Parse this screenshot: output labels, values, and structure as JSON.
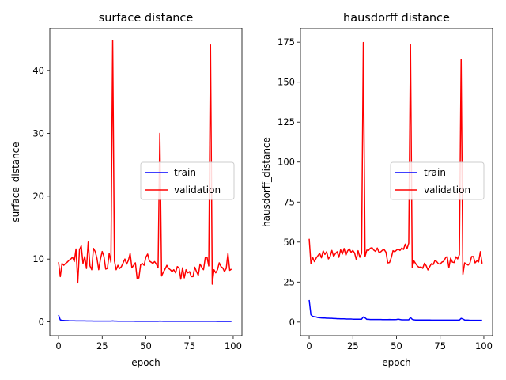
{
  "chart_data": [
    {
      "type": "line",
      "title": "surface distance",
      "xlabel": "epoch",
      "ylabel": "surface_distance",
      "xlim": [
        -5,
        105
      ],
      "ylim": [
        -2.2,
        46.7
      ],
      "xticks": [
        0,
        25,
        50,
        75,
        100
      ],
      "yticks": [
        0,
        10,
        20,
        30,
        40
      ],
      "legend": "center-right",
      "grid": false,
      "series": [
        {
          "name": "train",
          "color": "#0000ff",
          "x": [
            0,
            1,
            2,
            3,
            4,
            5,
            6,
            7,
            8,
            9,
            10,
            11,
            12,
            13,
            14,
            15,
            16,
            17,
            18,
            19,
            20,
            21,
            22,
            23,
            24,
            25,
            26,
            27,
            28,
            29,
            30,
            31,
            32,
            33,
            34,
            35,
            36,
            37,
            38,
            39,
            40,
            41,
            42,
            43,
            44,
            45,
            46,
            47,
            48,
            49,
            50,
            51,
            52,
            53,
            54,
            55,
            56,
            57,
            58,
            59,
            60,
            61,
            62,
            63,
            64,
            65,
            66,
            67,
            68,
            69,
            70,
            71,
            72,
            73,
            74,
            75,
            76,
            77,
            78,
            79,
            80,
            81,
            82,
            83,
            84,
            85,
            86,
            87,
            88,
            89,
            90,
            91,
            92,
            93,
            94,
            95,
            96,
            97,
            98,
            99
          ],
          "y": [
            1.1,
            0.3,
            0.25,
            0.22,
            0.2,
            0.2,
            0.18,
            0.17,
            0.16,
            0.16,
            0.15,
            0.15,
            0.15,
            0.14,
            0.14,
            0.14,
            0.13,
            0.13,
            0.13,
            0.13,
            0.12,
            0.12,
            0.12,
            0.12,
            0.12,
            0.11,
            0.11,
            0.11,
            0.11,
            0.11,
            0.11,
            0.15,
            0.12,
            0.11,
            0.1,
            0.1,
            0.1,
            0.1,
            0.1,
            0.1,
            0.1,
            0.1,
            0.1,
            0.1,
            0.09,
            0.09,
            0.09,
            0.09,
            0.09,
            0.09,
            0.09,
            0.09,
            0.09,
            0.09,
            0.09,
            0.09,
            0.09,
            0.09,
            0.12,
            0.1,
            0.09,
            0.09,
            0.08,
            0.08,
            0.08,
            0.08,
            0.08,
            0.08,
            0.08,
            0.08,
            0.08,
            0.08,
            0.08,
            0.08,
            0.08,
            0.08,
            0.08,
            0.08,
            0.08,
            0.08,
            0.08,
            0.08,
            0.08,
            0.08,
            0.08,
            0.08,
            0.08,
            0.1,
            0.09,
            0.08,
            0.08,
            0.07,
            0.07,
            0.07,
            0.07,
            0.07,
            0.07,
            0.07,
            0.07,
            0.07
          ]
        },
        {
          "name": "validation",
          "color": "#ff0000",
          "x": [
            0,
            1,
            2,
            3,
            4,
            5,
            6,
            7,
            8,
            9,
            10,
            11,
            12,
            13,
            14,
            15,
            16,
            17,
            18,
            19,
            20,
            21,
            22,
            23,
            24,
            25,
            26,
            27,
            28,
            29,
            30,
            31,
            32,
            33,
            34,
            35,
            36,
            37,
            38,
            39,
            40,
            41,
            42,
            43,
            44,
            45,
            46,
            47,
            48,
            49,
            50,
            51,
            52,
            53,
            54,
            55,
            56,
            57,
            58,
            59,
            60,
            61,
            62,
            63,
            64,
            65,
            66,
            67,
            68,
            69,
            70,
            71,
            72,
            73,
            74,
            75,
            76,
            77,
            78,
            79,
            80,
            81,
            82,
            83,
            84,
            85,
            86,
            87,
            88,
            89,
            90,
            91,
            92,
            93,
            94,
            95,
            96,
            97,
            98,
            99
          ],
          "y": [
            9.5,
            7.2,
            9.3,
            9.0,
            9.3,
            9.5,
            9.8,
            10.0,
            10.3,
            9.6,
            11.6,
            6.2,
            11.5,
            12.1,
            9.3,
            10.4,
            8.5,
            12.7,
            8.9,
            8.3,
            11.7,
            11.2,
            10.1,
            8.3,
            10.0,
            11.2,
            10.4,
            8.4,
            8.5,
            10.9,
            9.5,
            44.8,
            9.7,
            8.3,
            9.0,
            8.5,
            8.8,
            9.4,
            10.0,
            9.2,
            9.8,
            10.9,
            8.6,
            9.0,
            9.4,
            6.9,
            7.0,
            9.1,
            9.3,
            9.0,
            10.3,
            10.8,
            9.7,
            9.5,
            9.3,
            9.6,
            9.2,
            8.6,
            30.0,
            7.3,
            7.9,
            8.4,
            9.0,
            8.5,
            8.3,
            8.0,
            8.3,
            7.8,
            8.8,
            8.6,
            6.8,
            8.6,
            7.0,
            8.3,
            7.8,
            8.0,
            7.2,
            7.2,
            8.7,
            8.0,
            7.4,
            9.2,
            8.7,
            8.3,
            10.2,
            10.3,
            8.9,
            44.1,
            6.0,
            8.3,
            7.8,
            8.3,
            9.4,
            8.8,
            8.6,
            8.0,
            8.5,
            10.9,
            8.2,
            8.4
          ]
        }
      ],
      "legend_entries": [
        "train",
        "validation"
      ]
    },
    {
      "type": "line",
      "title": "hausdorff distance",
      "xlabel": "epoch",
      "ylabel": "hausdorff_distance",
      "xlim": [
        -5,
        105
      ],
      "ylim": [
        -8.5,
        183.5
      ],
      "xticks": [
        0,
        25,
        50,
        75,
        100
      ],
      "yticks": [
        0,
        25,
        50,
        75,
        100,
        125,
        150,
        175
      ],
      "legend": "center-right",
      "grid": false,
      "series": [
        {
          "name": "train",
          "color": "#0000ff",
          "x": [
            0,
            1,
            2,
            3,
            4,
            5,
            6,
            7,
            8,
            9,
            10,
            11,
            12,
            13,
            14,
            15,
            16,
            17,
            18,
            19,
            20,
            21,
            22,
            23,
            24,
            25,
            26,
            27,
            28,
            29,
            30,
            31,
            32,
            33,
            34,
            35,
            36,
            37,
            38,
            39,
            40,
            41,
            42,
            43,
            44,
            45,
            46,
            47,
            48,
            49,
            50,
            51,
            52,
            53,
            54,
            55,
            56,
            57,
            58,
            59,
            60,
            61,
            62,
            63,
            64,
            65,
            66,
            67,
            68,
            69,
            70,
            71,
            72,
            73,
            74,
            75,
            76,
            77,
            78,
            79,
            80,
            81,
            82,
            83,
            84,
            85,
            86,
            87,
            88,
            89,
            90,
            91,
            92,
            93,
            94,
            95,
            96,
            97,
            98,
            99
          ],
          "y": [
            13.8,
            4.5,
            3.6,
            3.3,
            3.2,
            2.8,
            2.7,
            2.6,
            2.5,
            2.5,
            2.4,
            2.4,
            2.3,
            2.3,
            2.2,
            2.2,
            2.1,
            2.1,
            2.0,
            2.0,
            2.0,
            1.9,
            1.9,
            1.9,
            1.9,
            1.8,
            1.8,
            1.8,
            1.8,
            1.8,
            1.8,
            3.2,
            2.6,
            1.7,
            1.7,
            1.6,
            1.6,
            1.6,
            1.6,
            1.6,
            1.6,
            1.6,
            1.5,
            1.5,
            1.5,
            1.5,
            1.6,
            1.5,
            1.5,
            1.5,
            1.6,
            1.8,
            1.6,
            1.4,
            1.4,
            1.4,
            1.4,
            1.4,
            2.8,
            1.7,
            1.4,
            1.3,
            1.3,
            1.3,
            1.3,
            1.3,
            1.3,
            1.3,
            1.3,
            1.3,
            1.2,
            1.2,
            1.2,
            1.2,
            1.2,
            1.2,
            1.2,
            1.2,
            1.2,
            1.2,
            1.2,
            1.2,
            1.2,
            1.2,
            1.2,
            1.2,
            1.2,
            2.3,
            1.9,
            1.3,
            1.2,
            1.2,
            1.1,
            1.1,
            1.1,
            1.1,
            1.1,
            1.1,
            1.1,
            1.1
          ]
        },
        {
          "name": "validation",
          "color": "#ff0000",
          "x": [
            0,
            1,
            2,
            3,
            4,
            5,
            6,
            7,
            8,
            9,
            10,
            11,
            12,
            13,
            14,
            15,
            16,
            17,
            18,
            19,
            20,
            21,
            22,
            23,
            24,
            25,
            26,
            27,
            28,
            29,
            30,
            31,
            32,
            33,
            34,
            35,
            36,
            37,
            38,
            39,
            40,
            41,
            42,
            43,
            44,
            45,
            46,
            47,
            48,
            49,
            50,
            51,
            52,
            53,
            54,
            55,
            56,
            57,
            58,
            59,
            60,
            61,
            62,
            63,
            64,
            65,
            66,
            67,
            68,
            69,
            70,
            71,
            72,
            73,
            74,
            75,
            76,
            77,
            78,
            79,
            80,
            81,
            82,
            83,
            84,
            85,
            86,
            87,
            88,
            89,
            90,
            91,
            92,
            93,
            94,
            95,
            96,
            97,
            98,
            99
          ],
          "y": [
            52.0,
            36.5,
            40.5,
            37.8,
            40.0,
            41.5,
            43.0,
            40.2,
            44.5,
            42.3,
            44.0,
            39.5,
            41.0,
            44.8,
            41.0,
            42.8,
            44.0,
            40.5,
            45.2,
            42.5,
            46.0,
            41.8,
            44.5,
            45.8,
            43.6,
            44.8,
            43.2,
            39.0,
            44.6,
            40.5,
            43.0,
            174.8,
            41.0,
            45.0,
            44.8,
            46.2,
            46.5,
            45.0,
            44.2,
            46.3,
            43.5,
            44.0,
            45.0,
            45.2,
            43.6,
            37.0,
            37.2,
            40.3,
            44.6,
            44.0,
            45.0,
            45.6,
            44.8,
            46.3,
            45.4,
            48.7,
            45.8,
            49.3,
            173.5,
            34.0,
            38.2,
            36.5,
            35.0,
            34.2,
            34.5,
            33.6,
            36.8,
            35.2,
            32.6,
            34.6,
            36.5,
            36.0,
            38.5,
            37.8,
            36.5,
            36.2,
            37.5,
            38.0,
            40.0,
            41.0,
            34.0,
            40.0,
            37.5,
            37.2,
            40.8,
            39.5,
            42.2,
            164.3,
            29.8,
            37.0,
            36.3,
            35.6,
            36.8,
            41.0,
            41.0,
            37.0,
            38.3,
            37.6,
            44.0,
            36.6
          ]
        }
      ],
      "legend_entries": [
        "train",
        "validation"
      ]
    }
  ]
}
